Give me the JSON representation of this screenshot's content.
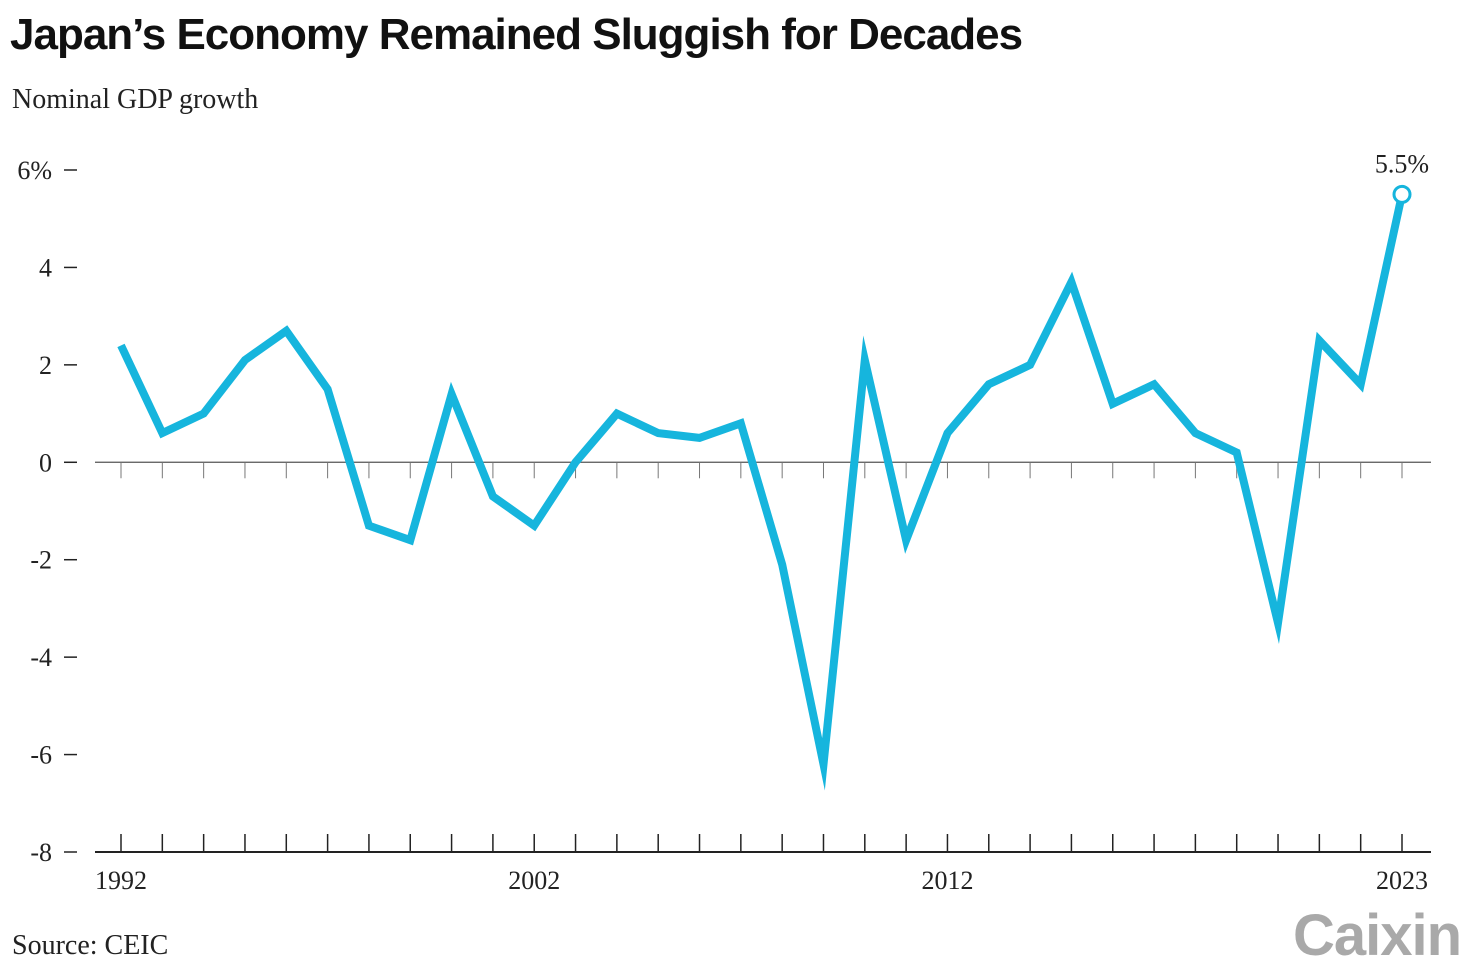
{
  "header": {
    "title": "Japan’s Economy Remained Sluggish for Decades",
    "subtitle": "Nominal GDP growth"
  },
  "footer": {
    "source": "Source: CEIC",
    "logo_text": "Caixin"
  },
  "colors": {
    "line": "#16b5dd",
    "axis": "#222222",
    "text": "#222222",
    "logo": "#a9a9a9"
  },
  "chart_data": {
    "type": "line",
    "title": "Japan’s Economy Remained Sluggish for Decades",
    "subtitle": "Nominal GDP growth",
    "xlabel": "",
    "ylabel": "",
    "x": [
      1992,
      1993,
      1994,
      1995,
      1996,
      1997,
      1998,
      1999,
      2000,
      2001,
      2002,
      2003,
      2004,
      2005,
      2006,
      2007,
      2008,
      2009,
      2010,
      2011,
      2012,
      2013,
      2014,
      2015,
      2016,
      2017,
      2018,
      2019,
      2020,
      2021,
      2022,
      2023
    ],
    "series": [
      {
        "values": [
          2.4,
          0.6,
          1.0,
          2.1,
          2.7,
          1.5,
          -1.3,
          -1.6,
          1.4,
          -0.7,
          -1.3,
          0.0,
          1.0,
          0.6,
          0.5,
          0.8,
          -2.1,
          -6.2,
          2.1,
          -1.6,
          0.6,
          1.6,
          2.0,
          3.7,
          1.2,
          1.6,
          0.6,
          0.2,
          -3.3,
          2.5,
          1.6,
          5.5
        ]
      }
    ],
    "xlim": [
      1992,
      2023
    ],
    "ylim": [
      -8,
      6
    ],
    "y_ticks": [
      6,
      4,
      2,
      0,
      -2,
      -4,
      -6,
      -8
    ],
    "y_tick_labels": [
      "6%",
      "4",
      "2",
      "0",
      "-2",
      "-4",
      "-6",
      "-8"
    ],
    "x_tick_labels": [
      {
        "year": 1992,
        "label": "1992"
      },
      {
        "year": 2002,
        "label": "2002"
      },
      {
        "year": 2012,
        "label": "2012"
      },
      {
        "year": 2023,
        "label": "2023"
      }
    ],
    "annotation": {
      "year": 2023,
      "value": 5.5,
      "label": "5.5%"
    },
    "grid": false,
    "legend": "none"
  }
}
